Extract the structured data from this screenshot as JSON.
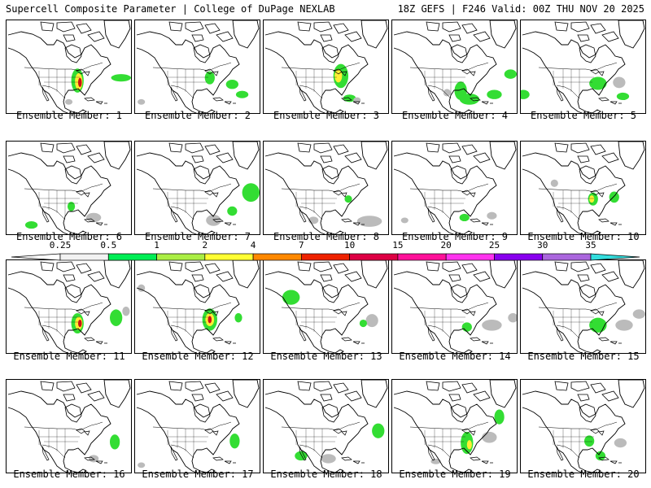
{
  "header": {
    "title": "Supercell Composite Parameter | College of DuPage NEXLAB",
    "run_info": "18Z GEFS | F246 Valid: 00Z THU NOV 20 2025"
  },
  "panel_label_prefix": "Ensemble Member: ",
  "members": [
    {
      "number": "1",
      "blobs": [
        [
          0.57,
          0.65,
          0.05,
          0.13,
          "#33dd33"
        ],
        [
          0.58,
          0.66,
          0.03,
          0.09,
          "#ffee33"
        ],
        [
          0.59,
          0.67,
          0.015,
          0.05,
          "#cc1111"
        ],
        [
          0.92,
          0.62,
          0.08,
          0.04,
          "#33dd33"
        ],
        [
          0.5,
          0.88,
          0.03,
          0.03,
          "#bbbbbb"
        ]
      ]
    },
    {
      "number": "2",
      "blobs": [
        [
          0.6,
          0.62,
          0.04,
          0.07,
          "#33dd33"
        ],
        [
          0.78,
          0.69,
          0.05,
          0.05,
          "#33dd33"
        ],
        [
          0.86,
          0.8,
          0.05,
          0.04,
          "#33dd33"
        ],
        [
          0.05,
          0.88,
          0.03,
          0.03,
          "#bbbbbb"
        ]
      ]
    },
    {
      "number": "3",
      "blobs": [
        [
          0.62,
          0.6,
          0.06,
          0.13,
          "#33dd33"
        ],
        [
          0.6,
          0.6,
          0.03,
          0.07,
          "#ffee33"
        ],
        [
          0.69,
          0.84,
          0.05,
          0.04,
          "#33dd33"
        ],
        [
          0.75,
          0.86,
          0.03,
          0.03,
          "#bbbbbb"
        ]
      ]
    },
    {
      "number": "4",
      "blobs": [
        [
          0.55,
          0.76,
          0.05,
          0.1,
          "#33dd33"
        ],
        [
          0.62,
          0.85,
          0.08,
          0.06,
          "#33dd33"
        ],
        [
          0.82,
          0.8,
          0.06,
          0.05,
          "#33dd33"
        ],
        [
          0.95,
          0.58,
          0.05,
          0.05,
          "#33dd33"
        ],
        [
          0.44,
          0.78,
          0.03,
          0.04,
          "#bbbbbb"
        ]
      ]
    },
    {
      "number": "5",
      "blobs": [
        [
          0.02,
          0.8,
          0.05,
          0.05,
          "#33dd33"
        ],
        [
          0.62,
          0.68,
          0.07,
          0.07,
          "#33dd33"
        ],
        [
          0.82,
          0.82,
          0.05,
          0.04,
          "#33dd33"
        ],
        [
          0.79,
          0.67,
          0.05,
          0.06,
          "#bbbbbb"
        ]
      ]
    },
    {
      "number": "6",
      "blobs": [
        [
          0.2,
          0.9,
          0.05,
          0.04,
          "#33dd33"
        ],
        [
          0.52,
          0.7,
          0.03,
          0.05,
          "#33dd33"
        ],
        [
          0.7,
          0.82,
          0.06,
          0.05,
          "#bbbbbb"
        ]
      ]
    },
    {
      "number": "7",
      "blobs": [
        [
          0.93,
          0.55,
          0.07,
          0.1,
          "#33dd33"
        ],
        [
          0.78,
          0.75,
          0.04,
          0.05,
          "#33dd33"
        ],
        [
          0.63,
          0.85,
          0.06,
          0.06,
          "#bbbbbb"
        ]
      ]
    },
    {
      "number": "8",
      "blobs": [
        [
          0.68,
          0.62,
          0.03,
          0.04,
          "#33dd33"
        ],
        [
          0.85,
          0.86,
          0.1,
          0.06,
          "#bbbbbb"
        ],
        [
          0.4,
          0.85,
          0.04,
          0.04,
          "#bbbbbb"
        ]
      ]
    },
    {
      "number": "9",
      "blobs": [
        [
          0.58,
          0.82,
          0.04,
          0.04,
          "#33dd33"
        ],
        [
          0.8,
          0.8,
          0.04,
          0.04,
          "#bbbbbb"
        ],
        [
          0.1,
          0.85,
          0.03,
          0.03,
          "#bbbbbb"
        ]
      ]
    },
    {
      "number": "10",
      "blobs": [
        [
          0.58,
          0.62,
          0.04,
          0.07,
          "#33dd33"
        ],
        [
          0.57,
          0.62,
          0.02,
          0.04,
          "#ffee33"
        ],
        [
          0.75,
          0.6,
          0.04,
          0.06,
          "#33dd33"
        ],
        [
          0.27,
          0.45,
          0.03,
          0.04,
          "#bbbbbb"
        ]
      ]
    },
    {
      "number": "11",
      "blobs": [
        [
          0.57,
          0.68,
          0.05,
          0.11,
          "#33dd33"
        ],
        [
          0.58,
          0.68,
          0.03,
          0.07,
          "#ffee33"
        ],
        [
          0.59,
          0.68,
          0.015,
          0.04,
          "#cc1111"
        ],
        [
          0.88,
          0.62,
          0.05,
          0.09,
          "#33dd33"
        ],
        [
          0.96,
          0.55,
          0.03,
          0.05,
          "#bbbbbb"
        ]
      ]
    },
    {
      "number": "12",
      "blobs": [
        [
          0.6,
          0.64,
          0.06,
          0.12,
          "#33dd33"
        ],
        [
          0.6,
          0.64,
          0.035,
          0.07,
          "#ffee33"
        ],
        [
          0.6,
          0.64,
          0.015,
          0.04,
          "#cc1111"
        ],
        [
          0.83,
          0.62,
          0.03,
          0.05,
          "#33dd33"
        ],
        [
          0.05,
          0.3,
          0.03,
          0.04,
          "#bbbbbb"
        ]
      ]
    },
    {
      "number": "13",
      "blobs": [
        [
          0.22,
          0.4,
          0.07,
          0.08,
          "#33dd33"
        ],
        [
          0.87,
          0.65,
          0.05,
          0.07,
          "#bbbbbb"
        ],
        [
          0.8,
          0.68,
          0.03,
          0.04,
          "#33dd33"
        ]
      ]
    },
    {
      "number": "14",
      "blobs": [
        [
          0.6,
          0.72,
          0.04,
          0.05,
          "#33dd33"
        ],
        [
          0.8,
          0.7,
          0.08,
          0.06,
          "#bbbbbb"
        ],
        [
          0.97,
          0.62,
          0.04,
          0.05,
          "#bbbbbb"
        ]
      ]
    },
    {
      "number": "15",
      "blobs": [
        [
          0.62,
          0.7,
          0.07,
          0.08,
          "#33dd33"
        ],
        [
          0.83,
          0.7,
          0.07,
          0.06,
          "#bbbbbb"
        ],
        [
          0.95,
          0.58,
          0.05,
          0.05,
          "#bbbbbb"
        ]
      ]
    },
    {
      "number": "16",
      "blobs": [
        [
          0.87,
          0.67,
          0.04,
          0.08,
          "#33dd33"
        ],
        [
          0.7,
          0.85,
          0.04,
          0.04,
          "#bbbbbb"
        ]
      ]
    },
    {
      "number": "17",
      "blobs": [
        [
          0.8,
          0.66,
          0.04,
          0.08,
          "#33dd33"
        ],
        [
          0.05,
          0.92,
          0.03,
          0.03,
          "#bbbbbb"
        ]
      ]
    },
    {
      "number": "18",
      "blobs": [
        [
          0.92,
          0.55,
          0.05,
          0.08,
          "#33dd33"
        ],
        [
          0.3,
          0.82,
          0.05,
          0.05,
          "#33dd33"
        ],
        [
          0.52,
          0.85,
          0.06,
          0.05,
          "#bbbbbb"
        ]
      ]
    },
    {
      "number": "19",
      "blobs": [
        [
          0.6,
          0.68,
          0.05,
          0.12,
          "#33dd33"
        ],
        [
          0.62,
          0.7,
          0.02,
          0.05,
          "#ffee33"
        ],
        [
          0.78,
          0.62,
          0.06,
          0.06,
          "#bbbbbb"
        ],
        [
          0.86,
          0.4,
          0.04,
          0.08,
          "#33dd33"
        ],
        [
          0.35,
          0.88,
          0.04,
          0.03,
          "#bbbbbb"
        ]
      ]
    },
    {
      "number": "20",
      "blobs": [
        [
          0.55,
          0.66,
          0.04,
          0.06,
          "#33dd33"
        ],
        [
          0.64,
          0.82,
          0.04,
          0.05,
          "#33dd33"
        ],
        [
          0.8,
          0.68,
          0.05,
          0.05,
          "#bbbbbb"
        ]
      ]
    }
  ],
  "colorbar": {
    "segments": [
      {
        "low": 0.25,
        "color": "#f2f2f2"
      },
      {
        "low": 0.5,
        "color": "#00ee55"
      },
      {
        "low": 1,
        "color": "#aaee44"
      },
      {
        "low": 2,
        "color": "#ffff33"
      },
      {
        "low": 4,
        "color": "#ff8800"
      },
      {
        "low": 7,
        "color": "#ee2200"
      },
      {
        "low": 10,
        "color": "#dd0044"
      },
      {
        "low": 15,
        "color": "#ff1199"
      },
      {
        "low": 20,
        "color": "#ff33ee"
      },
      {
        "low": 25,
        "color": "#8800ee"
      },
      {
        "low": 30,
        "color": "#aa66dd"
      },
      {
        "low": 35,
        "color": "#33dddd"
      }
    ],
    "tick_labels": [
      "0.25",
      "0.5",
      "1",
      "2",
      "4",
      "7",
      "10",
      "15",
      "20",
      "25",
      "30",
      "35"
    ]
  }
}
